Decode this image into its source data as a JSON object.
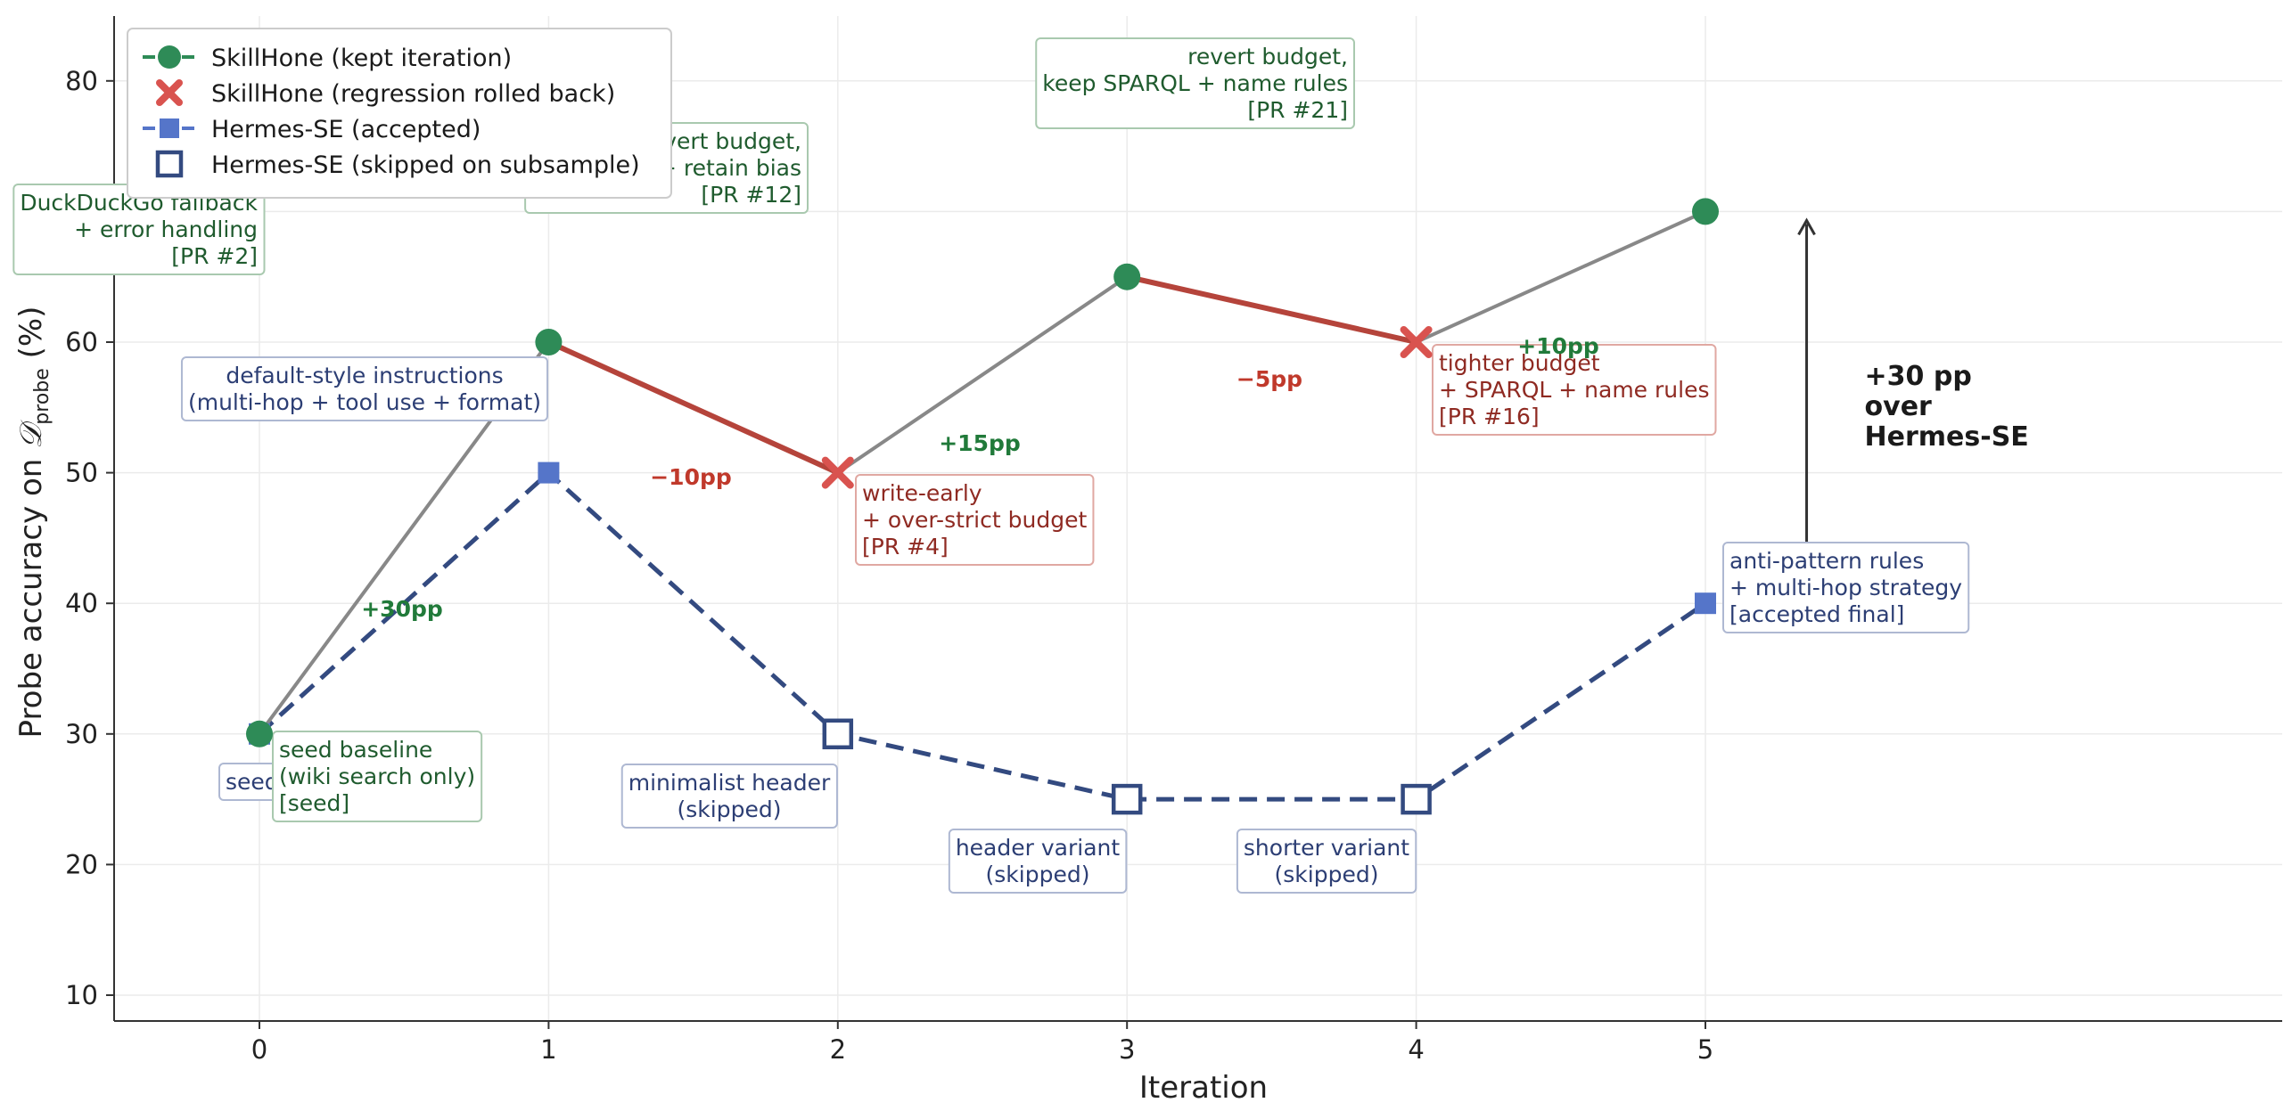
{
  "chart_data": {
    "type": "line",
    "xlabel": "Iteration",
    "ylabel": "Probe accuracy on 𝒟probe (%)",
    "ylabel_main": "Probe accuracy on ",
    "ylabel_sym": "𝒟",
    "ylabel_sub": "probe",
    "ylabel_end": " (%)",
    "xlim": [
      -0.5,
      7
    ],
    "ylim": [
      8,
      85
    ],
    "xticks": [
      0,
      1,
      2,
      3,
      4,
      5
    ],
    "yticks": [
      10,
      20,
      30,
      40,
      50,
      60,
      70,
      80
    ],
    "grid": true,
    "legend_placement": "top-left",
    "colors": {
      "kept": "#2e8b57",
      "regress": "#d9534f",
      "regress_line": "#b5443b",
      "gray_line": "#888888",
      "hermes": "#334a80",
      "hermes_fill": "#5575c9",
      "green_text": "#1f5b2e",
      "red_text": "#8f2a22",
      "blue_text": "#2c3e74",
      "delta_green": "#217a3a",
      "delta_red": "#c0392b"
    },
    "legend": [
      {
        "label": "SkillHone (kept iteration)",
        "marker": "circle-line"
      },
      {
        "label": "SkillHone (regression rolled back)",
        "marker": "x"
      },
      {
        "label": "Hermes-SE (accepted)",
        "marker": "square-line"
      },
      {
        "label": "Hermes-SE (skipped on subsample)",
        "marker": "open-square"
      }
    ],
    "series": [
      {
        "name": "SkillHone",
        "points": [
          {
            "x": 0,
            "y": 30,
            "status": "kept"
          },
          {
            "x": 1,
            "y": 60,
            "status": "kept"
          },
          {
            "x": 2,
            "y": 50,
            "status": "regress"
          },
          {
            "x": 3,
            "y": 65,
            "status": "kept"
          },
          {
            "x": 4,
            "y": 60,
            "status": "regress"
          },
          {
            "x": 5,
            "y": 70,
            "status": "kept"
          }
        ]
      },
      {
        "name": "Hermes-SE",
        "points": [
          {
            "x": 0,
            "y": 30,
            "status": "accepted"
          },
          {
            "x": 1,
            "y": 50,
            "status": "accepted"
          },
          {
            "x": 2,
            "y": 30,
            "status": "skipped"
          },
          {
            "x": 3,
            "y": 25,
            "status": "skipped"
          },
          {
            "x": 4,
            "y": 25,
            "status": "skipped"
          },
          {
            "x": 5,
            "y": 40,
            "status": "accepted"
          }
        ]
      }
    ],
    "annotations": [
      {
        "id": "ann-seed-hermes",
        "kind": "blue",
        "align": "start",
        "lines": [
          "seed"
        ]
      },
      {
        "id": "ann-seed",
        "kind": "green",
        "align": "start",
        "lines": [
          "seed baseline",
          "(wiki search only)",
          "[seed]"
        ]
      },
      {
        "id": "ann-pr2",
        "kind": "green",
        "align": "end",
        "lines": [
          "DuckDuckGo fallback",
          "+ error handling",
          "[PR #2]"
        ]
      },
      {
        "id": "ann-default-style",
        "kind": "blue",
        "align": "middle",
        "lines": [
          "default-style instructions",
          "(multi-hop + tool use + format)"
        ]
      },
      {
        "id": "ann-pr4",
        "kind": "red",
        "align": "start",
        "lines": [
          "write-early",
          "+ over-strict budget",
          "[PR #4]"
        ]
      },
      {
        "id": "ann-minimalist",
        "kind": "blue",
        "align": "middle",
        "lines": [
          "minimalist header",
          "(skipped)"
        ]
      },
      {
        "id": "ann-pr12",
        "kind": "green",
        "align": "end",
        "lines": [
          "merge: revert budget,",
          "light verify + retain bias",
          "[PR #12]"
        ]
      },
      {
        "id": "ann-header-variant",
        "kind": "blue",
        "align": "middle",
        "lines": [
          "header variant",
          "(skipped)"
        ]
      },
      {
        "id": "ann-pr16",
        "kind": "red",
        "align": "start",
        "lines": [
          "tighter budget",
          "+ SPARQL + name rules",
          "[PR #16]"
        ]
      },
      {
        "id": "ann-shorter-variant",
        "kind": "blue",
        "align": "middle",
        "lines": [
          "shorter variant",
          "(skipped)"
        ]
      },
      {
        "id": "ann-pr21",
        "kind": "green",
        "align": "end",
        "lines": [
          "revert budget,",
          "keep SPARQL + name rules",
          "[PR #21]"
        ]
      },
      {
        "id": "ann-final",
        "kind": "blue",
        "align": "start",
        "lines": [
          "anti-pattern rules",
          "+ multi-hop strategy",
          "[accepted final]"
        ]
      }
    ],
    "deltas": [
      {
        "text": "+30pp",
        "kind": "green"
      },
      {
        "text": "−10pp",
        "kind": "red"
      },
      {
        "text": "+15pp",
        "kind": "green"
      },
      {
        "text": "−5pp",
        "kind": "red"
      },
      {
        "text": "+10pp",
        "kind": "green"
      }
    ],
    "gap_annotation": {
      "lines": [
        "+30 pp",
        "over",
        "Hermes-SE"
      ],
      "from_y": 40,
      "to_y": 70,
      "x": 5.35
    }
  }
}
